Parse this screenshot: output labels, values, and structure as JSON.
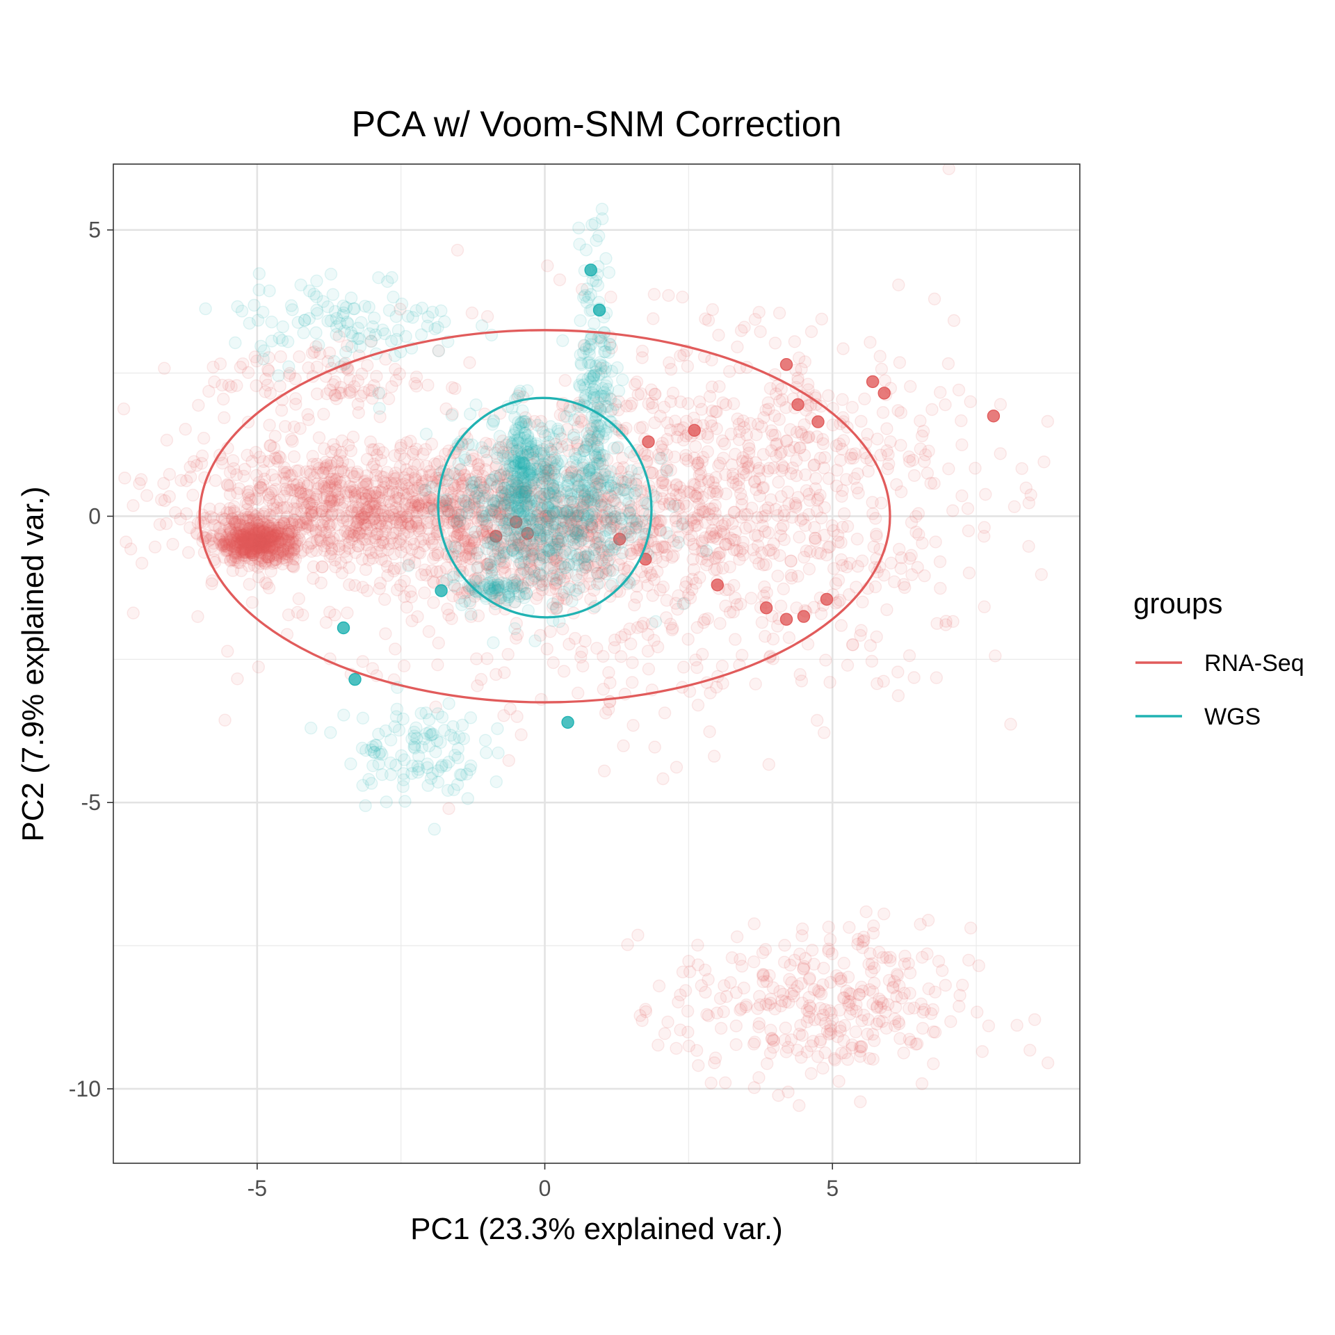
{
  "chart_data": {
    "type": "scatter",
    "title": "PCA w/ Voom-SNM Correction",
    "xlabel": "PC1 (23.3% explained var.)",
    "ylabel": "PC2 (7.9% explained var.)",
    "xlim": [
      -7.5,
      9.3
    ],
    "ylim": [
      -11.3,
      6.15
    ],
    "x_ticks": [
      -5,
      0,
      5
    ],
    "y_ticks": [
      5,
      0,
      -5,
      -10
    ],
    "x_tick_labels": [
      "-5",
      "0",
      "5"
    ],
    "y_tick_labels": [
      "5",
      "0",
      "-5",
      "-10"
    ],
    "grid": true,
    "legend": {
      "title": "groups",
      "position": "right",
      "entries": [
        "RNA-Seq",
        "WGS"
      ]
    },
    "series": [
      {
        "name": "RNA-Seq",
        "color": "#E15B5B",
        "marker_alpha": 0.08,
        "ellipse": {
          "center": [
            0,
            0
          ],
          "rx": 6.0,
          "ry": 3.25
        },
        "clusters": [
          {
            "cx": -3.2,
            "cy": 0.15,
            "sx": 1.6,
            "sy": 0.55,
            "n": 900
          },
          {
            "cx": -5.0,
            "cy": -0.45,
            "sx": 0.35,
            "sy": 0.18,
            "n": 500
          },
          {
            "cx": 0.0,
            "cy": -0.3,
            "sx": 1.4,
            "sy": 0.6,
            "n": 500
          },
          {
            "cx": 3.2,
            "cy": 0.5,
            "sx": 2.0,
            "sy": 1.3,
            "n": 700
          },
          {
            "cx": 1.0,
            "cy": -0.5,
            "sx": 3.0,
            "sy": 1.8,
            "n": 450
          },
          {
            "cx": 4.8,
            "cy": -8.6,
            "sx": 1.3,
            "sy": 0.7,
            "n": 320
          },
          {
            "cx": -4.0,
            "cy": 2.4,
            "sx": 1.0,
            "sy": 0.35,
            "n": 90
          }
        ],
        "highlighted_points": [
          [
            4.2,
            2.65
          ],
          [
            5.7,
            2.35
          ],
          [
            5.9,
            2.15
          ],
          [
            4.4,
            1.95
          ],
          [
            4.75,
            1.65
          ],
          [
            2.6,
            1.5
          ],
          [
            1.8,
            1.3
          ],
          [
            7.8,
            1.75
          ],
          [
            -0.5,
            -0.1
          ],
          [
            -0.85,
            -0.35
          ],
          [
            -0.3,
            -0.3
          ],
          [
            1.3,
            -0.4
          ],
          [
            1.75,
            -0.75
          ],
          [
            3.0,
            -1.2
          ],
          [
            4.2,
            -1.8
          ],
          [
            4.5,
            -1.75
          ],
          [
            4.9,
            -1.45
          ],
          [
            3.85,
            -1.6
          ]
        ]
      },
      {
        "name": "WGS",
        "color": "#20B2B2",
        "marker_alpha": 0.08,
        "ellipse": {
          "center": [
            0,
            0.15
          ],
          "rx": 1.85,
          "ry": 1.92,
          "rotation_deg": 15
        },
        "clusters": [
          {
            "cx": 0.0,
            "cy": 0.2,
            "sx": 0.85,
            "sy": 0.8,
            "n": 600
          },
          {
            "cx": 0.9,
            "cy": 2.5,
            "sx": 0.15,
            "sy": 1.2,
            "n": 170
          },
          {
            "cx": -2.3,
            "cy": -4.1,
            "sx": 0.6,
            "sy": 0.45,
            "n": 110
          },
          {
            "cx": -3.5,
            "cy": 3.4,
            "sx": 1.0,
            "sy": 0.4,
            "n": 110
          },
          {
            "cx": -0.4,
            "cy": 0.7,
            "sx": 0.12,
            "sy": 0.55,
            "n": 120
          },
          {
            "cx": -0.8,
            "cy": -1.3,
            "sx": 0.3,
            "sy": 0.1,
            "n": 60
          }
        ],
        "highlighted_points": [
          [
            0.8,
            4.3
          ],
          [
            0.95,
            3.6
          ],
          [
            -1.8,
            -1.3
          ],
          [
            -3.5,
            -1.95
          ],
          [
            -3.3,
            -2.85
          ],
          [
            0.4,
            -3.6
          ]
        ]
      }
    ]
  }
}
